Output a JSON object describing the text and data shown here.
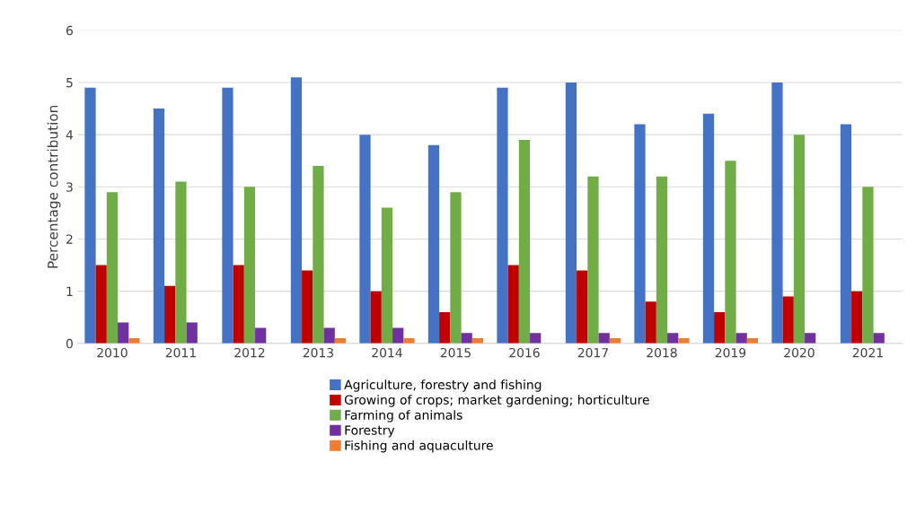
{
  "chart_data": {
    "type": "bar",
    "ylabel": "Percentage contribution",
    "categories": [
      "2010",
      "2011",
      "2012",
      "2013",
      "2014",
      "2015",
      "2016",
      "2017",
      "2018",
      "2019",
      "2020",
      "2021"
    ],
    "series": [
      {
        "name": "Agriculture, forestry and fishing",
        "color": "#4472c4",
        "values": [
          4.9,
          4.5,
          4.9,
          5.1,
          4.0,
          3.8,
          4.9,
          5.0,
          4.2,
          4.4,
          5.0,
          4.2
        ]
      },
      {
        "name": "Growing of crops; market gardening; horticulture",
        "color": "#c00000",
        "values": [
          1.5,
          1.1,
          1.5,
          1.4,
          1.0,
          0.6,
          1.5,
          1.4,
          0.8,
          0.6,
          0.9,
          1.0
        ]
      },
      {
        "name": "Farming of animals",
        "color": "#70ad47",
        "values": [
          2.9,
          3.1,
          3.0,
          3.4,
          2.6,
          2.9,
          3.9,
          3.2,
          3.2,
          3.5,
          4.0,
          3.0
        ]
      },
      {
        "name": "Forestry",
        "color": "#7030a0",
        "values": [
          0.4,
          0.4,
          0.3,
          0.3,
          0.3,
          0.2,
          0.2,
          0.2,
          0.2,
          0.2,
          0.2,
          0.2
        ]
      },
      {
        "name": "Fishing and aquaculture",
        "color": "#ed7d31",
        "values": [
          0.1,
          0,
          0,
          0.1,
          0.1,
          0.1,
          0,
          0.1,
          0.1,
          0.1,
          0,
          0
        ]
      }
    ],
    "ylim": [
      0,
      6
    ],
    "yticks": [
      0,
      1,
      2,
      3,
      4,
      5,
      6
    ],
    "grid": "y",
    "legend": "bottom"
  }
}
